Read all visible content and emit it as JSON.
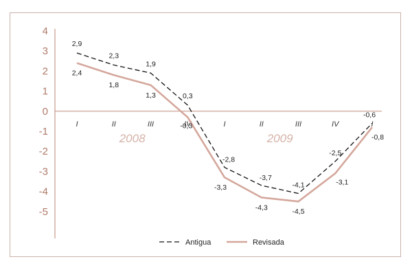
{
  "chart_data": {
    "type": "line",
    "categories": [
      "I",
      "II",
      "III",
      "IV",
      "I",
      "II",
      "III",
      "IV",
      "I"
    ],
    "years": [
      {
        "label": "2008",
        "start_index": 0,
        "end_index": 3
      },
      {
        "label": "2009",
        "start_index": 4,
        "end_index": 7
      }
    ],
    "series": [
      {
        "name": "Antigua",
        "values": [
          2.9,
          2.3,
          1.9,
          0.3,
          -2.8,
          -3.7,
          -4.1,
          -2.5,
          -0.6
        ],
        "labels": [
          "2,9",
          "2,3",
          "1,9",
          "0,3",
          "-2,8",
          "-3,7",
          "-4,1",
          "-2,5",
          "-0,6"
        ],
        "color": "#111111",
        "style": "dashed"
      },
      {
        "name": "Revisada",
        "values": [
          2.4,
          1.8,
          1.3,
          -0.3,
          -3.3,
          -4.3,
          -4.5,
          -3.1,
          -0.8
        ],
        "labels": [
          "2,4",
          "1,8",
          "1,3",
          "-0,3",
          "-3,3",
          "-4,3",
          "-4,5",
          "-3,1",
          "-0,8"
        ],
        "color": "#d4a79c",
        "style": "solid"
      }
    ],
    "ylim": [
      -6,
      4
    ],
    "yticks": [
      4,
      3,
      2,
      1,
      0,
      -1,
      -2,
      -3,
      -4,
      -5
    ],
    "ytick_labels": [
      "4",
      "3",
      "2",
      "1",
      "0",
      "-1",
      "-2",
      "-3",
      "-4",
      "-5"
    ],
    "legend_position": "bottom-center",
    "grid": false,
    "colors": {
      "axis": "#c99888",
      "tick_text": "#b07a6a",
      "year_text": "#d5b2a8",
      "frame": "#c9b0a8"
    }
  }
}
